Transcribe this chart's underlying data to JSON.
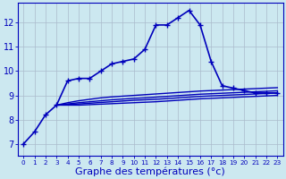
{
  "background_color": "#cce8f0",
  "plot_bg_color": "#cce8f0",
  "grid_color": "#aabbcc",
  "line_color": "#0000bb",
  "xlabel": "Graphe des températures (°c)",
  "xlabel_fontsize": 8,
  "xlim": [
    -0.5,
    23.5
  ],
  "ylim": [
    6.5,
    12.8
  ],
  "yticks": [
    7,
    8,
    9,
    10,
    11,
    12
  ],
  "xticks": [
    0,
    1,
    2,
    3,
    4,
    5,
    6,
    7,
    8,
    9,
    10,
    11,
    12,
    13,
    14,
    15,
    16,
    17,
    18,
    19,
    20,
    21,
    22,
    23
  ],
  "series_main": {
    "x": [
      0,
      1,
      2,
      3,
      4,
      5,
      6,
      7,
      8,
      9,
      10,
      11,
      12,
      13,
      14,
      15,
      16,
      17,
      18,
      19,
      20,
      21,
      22,
      23
    ],
    "y": [
      7.0,
      7.5,
      8.2,
      8.6,
      9.6,
      9.7,
      9.7,
      10.0,
      10.3,
      10.4,
      10.5,
      10.9,
      11.9,
      11.9,
      12.2,
      12.5,
      11.9,
      10.4,
      9.4,
      9.3,
      9.2,
      9.1,
      9.1,
      9.1
    ],
    "marker": "+",
    "markersize": 4,
    "linewidth": 1.2,
    "zorder": 5
  },
  "series_flat": [
    {
      "x": [
        3,
        4,
        5,
        6,
        7,
        8,
        9,
        10,
        11,
        12,
        13,
        14,
        15,
        16,
        17,
        18,
        19,
        20,
        21,
        22,
        23
      ],
      "y": [
        8.6,
        8.7,
        8.78,
        8.84,
        8.9,
        8.94,
        8.97,
        9.0,
        9.03,
        9.06,
        9.09,
        9.12,
        9.15,
        9.18,
        9.2,
        9.22,
        9.24,
        9.26,
        9.28,
        9.3,
        9.32
      ],
      "linewidth": 1.0
    },
    {
      "x": [
        3,
        4,
        5,
        6,
        7,
        8,
        9,
        10,
        11,
        12,
        13,
        14,
        15,
        16,
        17,
        18,
        19,
        20,
        21,
        22,
        23
      ],
      "y": [
        8.6,
        8.65,
        8.7,
        8.74,
        8.78,
        8.82,
        8.85,
        8.88,
        8.9,
        8.93,
        8.96,
        8.99,
        9.02,
        9.05,
        9.07,
        9.09,
        9.11,
        9.13,
        9.15,
        9.17,
        9.19
      ],
      "linewidth": 1.0
    },
    {
      "x": [
        3,
        4,
        5,
        6,
        7,
        8,
        9,
        10,
        11,
        12,
        13,
        14,
        15,
        16,
        17,
        18,
        19,
        20,
        21,
        22,
        23
      ],
      "y": [
        8.6,
        8.62,
        8.65,
        8.68,
        8.71,
        8.74,
        8.77,
        8.8,
        8.82,
        8.84,
        8.87,
        8.9,
        8.93,
        8.96,
        8.98,
        9.0,
        9.02,
        9.04,
        9.06,
        9.08,
        9.1
      ],
      "linewidth": 1.0
    },
    {
      "x": [
        3,
        4,
        5,
        6,
        7,
        8,
        9,
        10,
        11,
        12,
        13,
        14,
        15,
        16,
        17,
        18,
        19,
        20,
        21,
        22,
        23
      ],
      "y": [
        8.6,
        8.6,
        8.6,
        8.62,
        8.64,
        8.66,
        8.68,
        8.7,
        8.72,
        8.74,
        8.77,
        8.8,
        8.83,
        8.86,
        8.88,
        8.9,
        8.92,
        8.94,
        8.96,
        8.98,
        9.0
      ],
      "linewidth": 1.0
    }
  ]
}
